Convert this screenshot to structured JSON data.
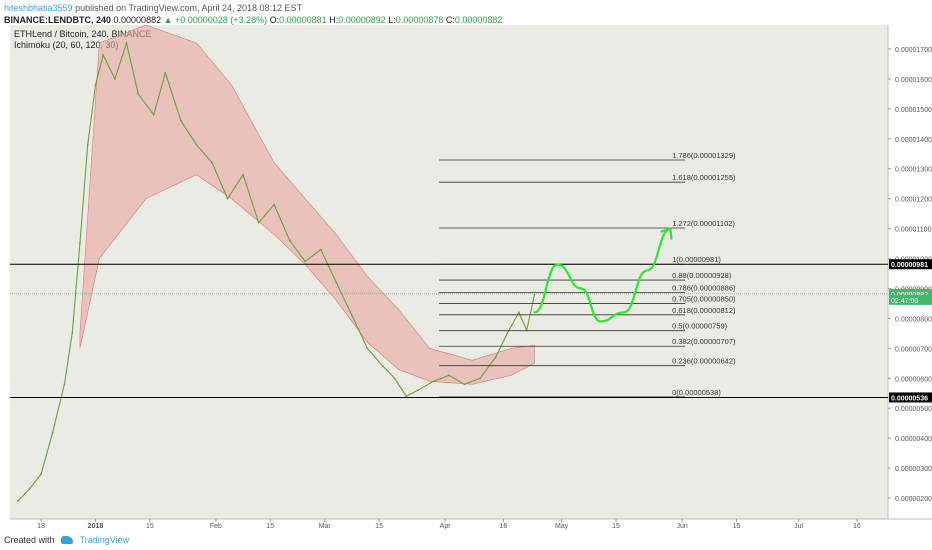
{
  "header": {
    "author": "hiteshbhatia3559",
    "published": "published on TradingView.com, April 24, 2018 08:12 EST",
    "symbol": "BINANCE:LENDBTC, 240",
    "last": "0.00000882",
    "change": "▲ +0.00000028 (+3.28%)",
    "o_label": "O:",
    "o_value": "0.00000881",
    "h_label": "H:",
    "h_value": "0.00000892",
    "l_label": "L:",
    "l_value": "0.00000878",
    "c_label": "C:",
    "c_value": "0.00000882"
  },
  "footer": {
    "created_with": "Created with",
    "brand": "TradingView"
  },
  "chart_data": {
    "type": "candlestick",
    "title": "ETHLend / Bitcoin, 240, BINANCE",
    "indicator": "Ichimoku (20, 60, 120, 30)",
    "y_axis": {
      "ticks": [
        "0.00001700",
        "0.00001600",
        "0.00001500",
        "0.00001400",
        "0.00001300",
        "0.00001200",
        "0.00001100",
        "0.00001000",
        "0.00000900",
        "0.00000800",
        "0.00000700",
        "0.00000600",
        "0.00000500",
        "0.00000400",
        "0.00000300",
        "0.00000200"
      ],
      "range": [
        1.3e-06,
        1.78e-05
      ]
    },
    "x_axis": {
      "ticks": [
        "18",
        "2018",
        "15",
        "Feb",
        "15",
        "Mar",
        "15",
        "Apr",
        "16",
        "May",
        "15",
        "Jun",
        "15",
        "Jul",
        "16"
      ],
      "range": [
        "2017-12-10",
        "2018-07-24"
      ]
    },
    "fibonacci": [
      {
        "label": "1.786(0.00001329)",
        "value": 1.329e-05
      },
      {
        "label": "1.618(0.00001255)",
        "value": 1.255e-05
      },
      {
        "label": "1.272(0.00001102)",
        "value": 1.102e-05
      },
      {
        "label": "1(0.00000981)",
        "value": 9.81e-06
      },
      {
        "label": "0.88(0.00000928)",
        "value": 9.28e-06
      },
      {
        "label": "0.786(0.00000886)",
        "value": 8.86e-06
      },
      {
        "label": "0.705(0.00000850)",
        "value": 8.5e-06
      },
      {
        "label": "0.618(0.00000812)",
        "value": 8.12e-06
      },
      {
        "label": "0.5(0.00000759)",
        "value": 7.59e-06
      },
      {
        "label": "0.382(0.00000707)",
        "value": 7.07e-06
      },
      {
        "label": "0.236(0.00000642)",
        "value": 6.42e-06
      },
      {
        "label": "0(0.00000538)",
        "value": 5.38e-06
      }
    ],
    "horizontal_lines": [
      {
        "label": "0.00000981",
        "value": 9.81e-06,
        "color": "#000000"
      },
      {
        "label": "0.00000536",
        "value": 5.36e-06,
        "color": "#000000"
      }
    ],
    "price_markers": [
      {
        "label": "0.00000882",
        "value": 8.82e-06,
        "color": "#43b86b"
      },
      {
        "label": "02:47:00",
        "value": 8.62e-06,
        "color": "#43b86b"
      }
    ],
    "price_series": [
      {
        "date": "2017-12-12",
        "value": 1.9e-06
      },
      {
        "date": "2017-12-15",
        "value": 2.3e-06
      },
      {
        "date": "2017-12-18",
        "value": 2.8e-06
      },
      {
        "date": "2017-12-21",
        "value": 4.2e-06
      },
      {
        "date": "2017-12-24",
        "value": 5.8e-06
      },
      {
        "date": "2017-12-26",
        "value": 7.5e-06
      },
      {
        "date": "2017-12-28",
        "value": 1.05e-05
      },
      {
        "date": "2017-12-30",
        "value": 1.38e-05
      },
      {
        "date": "2018-01-01",
        "value": 1.58e-05
      },
      {
        "date": "2018-01-03",
        "value": 1.68e-05
      },
      {
        "date": "2018-01-06",
        "value": 1.6e-05
      },
      {
        "date": "2018-01-09",
        "value": 1.72e-05
      },
      {
        "date": "2018-01-12",
        "value": 1.55e-05
      },
      {
        "date": "2018-01-16",
        "value": 1.48e-05
      },
      {
        "date": "2018-01-19",
        "value": 1.62e-05
      },
      {
        "date": "2018-01-23",
        "value": 1.46e-05
      },
      {
        "date": "2018-01-27",
        "value": 1.38e-05
      },
      {
        "date": "2018-01-31",
        "value": 1.32e-05
      },
      {
        "date": "2018-02-04",
        "value": 1.2e-05
      },
      {
        "date": "2018-02-08",
        "value": 1.28e-05
      },
      {
        "date": "2018-02-12",
        "value": 1.12e-05
      },
      {
        "date": "2018-02-16",
        "value": 1.18e-05
      },
      {
        "date": "2018-02-20",
        "value": 1.06e-05
      },
      {
        "date": "2018-02-24",
        "value": 9.9e-06
      },
      {
        "date": "2018-02-28",
        "value": 1.03e-05
      },
      {
        "date": "2018-03-04",
        "value": 9.2e-06
      },
      {
        "date": "2018-03-08",
        "value": 8.1e-06
      },
      {
        "date": "2018-03-12",
        "value": 7e-06
      },
      {
        "date": "2018-03-16",
        "value": 6.4e-06
      },
      {
        "date": "2018-03-19",
        "value": 6e-06
      },
      {
        "date": "2018-03-22",
        "value": 5.4e-06
      },
      {
        "date": "2018-03-25",
        "value": 5.6e-06
      },
      {
        "date": "2018-03-29",
        "value": 5.9e-06
      },
      {
        "date": "2018-04-02",
        "value": 6.1e-06
      },
      {
        "date": "2018-04-06",
        "value": 5.8e-06
      },
      {
        "date": "2018-04-10",
        "value": 6e-06
      },
      {
        "date": "2018-04-14",
        "value": 6.7e-06
      },
      {
        "date": "2018-04-17",
        "value": 7.5e-06
      },
      {
        "date": "2018-04-20",
        "value": 8.2e-06
      },
      {
        "date": "2018-04-22",
        "value": 7.6e-06
      },
      {
        "date": "2018-04-24",
        "value": 8.8e-06
      }
    ],
    "projection": [
      {
        "date": "2018-04-24",
        "value": 8.2e-06
      },
      {
        "date": "2018-04-30",
        "value": 9.8e-06
      },
      {
        "date": "2018-05-06",
        "value": 9e-06
      },
      {
        "date": "2018-05-11",
        "value": 7.9e-06
      },
      {
        "date": "2018-05-17",
        "value": 8.2e-06
      },
      {
        "date": "2018-05-23",
        "value": 9.6e-06
      },
      {
        "date": "2018-05-29",
        "value": 1.1e-05
      }
    ],
    "cloud_series": [
      {
        "date": "2017-12-28",
        "value": 7.5e-06
      },
      {
        "date": "2018-01-02",
        "value": 1.72e-05
      },
      {
        "date": "2018-01-14",
        "value": 1.78e-05
      },
      {
        "date": "2018-01-27",
        "value": 1.72e-05
      },
      {
        "date": "2018-02-05",
        "value": 1.58e-05
      },
      {
        "date": "2018-02-16",
        "value": 1.32e-05
      },
      {
        "date": "2018-02-24",
        "value": 1.2e-05
      },
      {
        "date": "2018-03-04",
        "value": 1.08e-05
      },
      {
        "date": "2018-03-12",
        "value": 9.4e-06
      },
      {
        "date": "2018-03-20",
        "value": 8.3e-06
      },
      {
        "date": "2018-03-28",
        "value": 7e-06
      },
      {
        "date": "2018-04-08",
        "value": 6.6e-06
      },
      {
        "date": "2018-04-18",
        "value": 7e-06
      },
      {
        "date": "2018-04-24",
        "value": 7.1e-06
      }
    ],
    "cloud_base": [
      {
        "date": "2017-12-28",
        "value": 7e-06
      },
      {
        "date": "2018-01-02",
        "value": 1e-05
      },
      {
        "date": "2018-01-14",
        "value": 1.2e-05
      },
      {
        "date": "2018-01-27",
        "value": 1.28e-05
      },
      {
        "date": "2018-02-05",
        "value": 1.2e-05
      },
      {
        "date": "2018-02-16",
        "value": 1.08e-05
      },
      {
        "date": "2018-02-24",
        "value": 9.8e-06
      },
      {
        "date": "2018-03-04",
        "value": 8.6e-06
      },
      {
        "date": "2018-03-12",
        "value": 7.2e-06
      },
      {
        "date": "2018-03-20",
        "value": 6.3e-06
      },
      {
        "date": "2018-03-28",
        "value": 5.9e-06
      },
      {
        "date": "2018-04-08",
        "value": 5.8e-06
      },
      {
        "date": "2018-04-18",
        "value": 6.1e-06
      },
      {
        "date": "2018-04-24",
        "value": 6.5e-06
      }
    ],
    "colors": {
      "background": "#ebebe5",
      "up_cloud": "#a5c88c",
      "down_cloud": "#e8a7a0",
      "price_line": "#6a9f3c",
      "projection": "#2de82d",
      "axis_text": "#555555"
    }
  }
}
